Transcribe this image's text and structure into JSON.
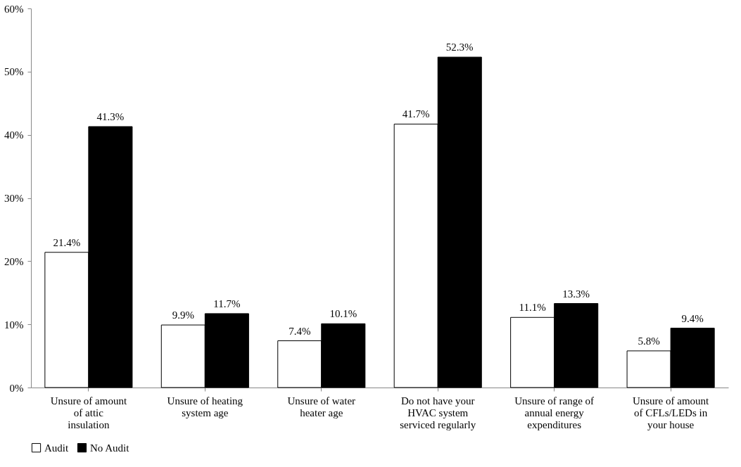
{
  "chart_data": {
    "type": "bar",
    "categories": [
      "Unsure of amount of attic insulation",
      "Unsure of heating system age",
      "Unsure of  water heater age",
      "Do not have your HVAC system serviced regularly",
      "Unsure of range of annual energy expenditures",
      "Unsure of amount of CFLs/LEDs in your house"
    ],
    "series": [
      {
        "name": "Audit",
        "color": "#ffffff",
        "values": [
          21.4,
          9.9,
          7.4,
          41.7,
          11.1,
          5.8
        ],
        "value_labels": [
          "21.4%",
          "9.9%",
          "7.4%",
          "41.7%",
          "11.1%",
          "5.8%"
        ]
      },
      {
        "name": "No Audit",
        "color": "#000000",
        "values": [
          41.3,
          11.7,
          10.1,
          52.3,
          13.3,
          9.4
        ],
        "value_labels": [
          "41.3%",
          "11.7%",
          "10.1%",
          "52.3%",
          "13.3%",
          "9.4%"
        ]
      }
    ],
    "ylim": [
      0,
      60
    ],
    "yticks": [
      {
        "value": 0,
        "label": "0%"
      },
      {
        "value": 10,
        "label": "10%"
      },
      {
        "value": 20,
        "label": "20%"
      },
      {
        "value": 30,
        "label": "30%"
      },
      {
        "value": 40,
        "label": "40%"
      },
      {
        "value": 50,
        "label": "50%"
      },
      {
        "value": 60,
        "label": "60%"
      }
    ],
    "grid": false,
    "legend": "bottom"
  }
}
